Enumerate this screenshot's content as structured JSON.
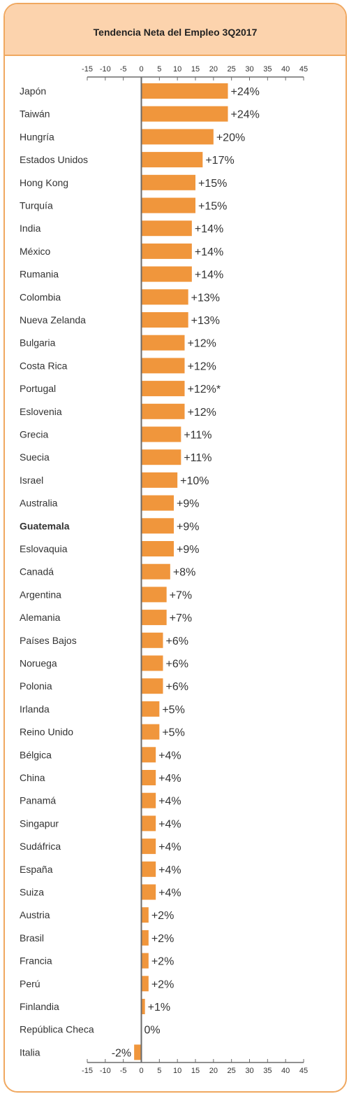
{
  "chart_data": {
    "type": "bar",
    "orientation": "horizontal",
    "title": "Tendencia Neta del Empleo 3Q2017",
    "xlim": [
      -15,
      45
    ],
    "xticks": [
      -15,
      -10,
      -5,
      0,
      5,
      10,
      15,
      20,
      25,
      30,
      35,
      40,
      45
    ],
    "xtick_labels": [
      "-15",
      "-10",
      "-5",
      "0",
      "5",
      "10",
      "15",
      "20",
      "25",
      "30",
      "35",
      "40",
      "45"
    ],
    "grid": false,
    "highlight_category": "Guatemala",
    "bar_color": "#f0963c",
    "categories": [
      "Japón",
      "Taiwán",
      "Hungría",
      "Estados Unidos",
      "Hong Kong",
      "Turquía",
      "India",
      "México",
      "Rumania",
      "Colombia",
      "Nueva Zelanda",
      "Bulgaria",
      "Costa Rica",
      "Portugal",
      "Eslovenia",
      "Grecia",
      "Suecia",
      "Israel",
      "Australia",
      "Guatemala",
      "Eslovaquia",
      "Canadá",
      "Argentina",
      "Alemania",
      "Países Bajos",
      "Noruega",
      "Polonia",
      "Irlanda",
      "Reino Unido",
      "Bélgica",
      "China",
      "Panamá",
      "Singapur",
      "Sudáfrica",
      "España",
      "Suiza",
      "Austria",
      "Brasil",
      "Francia",
      "Perú",
      "Finlandia",
      "República Checa",
      "Italia"
    ],
    "values": [
      24,
      24,
      20,
      17,
      15,
      15,
      14,
      14,
      14,
      13,
      13,
      12,
      12,
      12,
      12,
      11,
      11,
      10,
      9,
      9,
      9,
      8,
      7,
      7,
      6,
      6,
      6,
      5,
      5,
      4,
      4,
      4,
      4,
      4,
      4,
      4,
      2,
      2,
      2,
      2,
      1,
      0,
      -2
    ],
    "value_labels": [
      "+24%",
      "+24%",
      "+20%",
      "+17%",
      "+15%",
      "+15%",
      "+14%",
      "+14%",
      "+14%",
      "+13%",
      "+13%",
      "+12%",
      "+12%",
      "+12%*",
      "+12%",
      "+11%",
      "+11%",
      "+10%",
      "+9%",
      "+9%",
      "+9%",
      "+8%",
      "+7%",
      "+7%",
      "+6%",
      "+6%",
      "+6%",
      "+5%",
      "+5%",
      "+4%",
      "+4%",
      "+4%",
      "+4%",
      "+4%",
      "+4%",
      "+4%",
      "+2%",
      "+2%",
      "+2%",
      "+2%",
      "+1%",
      "0%",
      "-2%"
    ]
  }
}
